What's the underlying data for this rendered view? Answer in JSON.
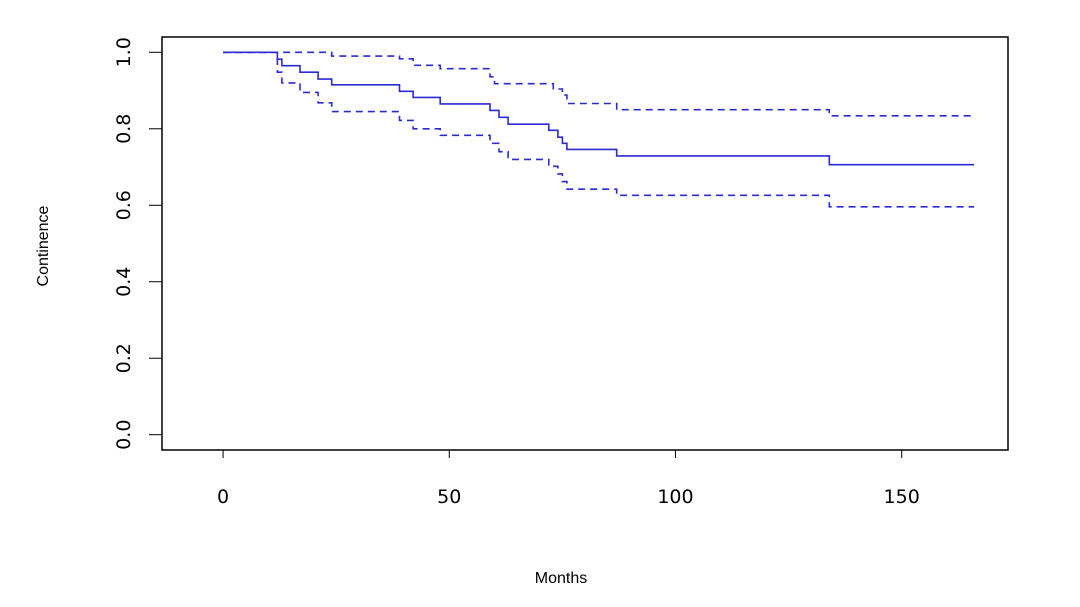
{
  "chart_data": {
    "type": "line",
    "title": "",
    "xlabel": "Months",
    "ylabel": "Continence",
    "xlim": [
      -13.5,
      173.5
    ],
    "ylim": [
      -0.04,
      1.04
    ],
    "x_ticks": [
      0,
      50,
      100,
      150
    ],
    "x_tick_labels": [
      "0",
      "50",
      "100",
      "150"
    ],
    "y_ticks": [
      0,
      0.2,
      0.4,
      0.6,
      0.8,
      1.0
    ],
    "y_tick_labels": [
      "0.0",
      "0.2",
      "0.4",
      "0.6",
      "0.8",
      "1.0"
    ],
    "grid": false,
    "legend": "none",
    "series": [
      {
        "style": "solid",
        "color": "#2b2bd1",
        "step": true,
        "x": [
          0,
          12,
          13,
          17,
          21,
          24,
          39,
          42,
          48,
          59,
          61,
          63,
          72,
          74,
          75,
          76,
          87,
          134,
          166
        ],
        "y": [
          1.0,
          0.982,
          0.965,
          0.948,
          0.93,
          0.915,
          0.898,
          0.882,
          0.865,
          0.848,
          0.83,
          0.812,
          0.796,
          0.778,
          0.762,
          0.746,
          0.729,
          0.706,
          0.706
        ]
      },
      {
        "style": "dashed",
        "color": "#2b2bd1",
        "step": true,
        "x": [
          0,
          12,
          24,
          39,
          42,
          48,
          59,
          60,
          73,
          75,
          76,
          87,
          134,
          166
        ],
        "y": [
          1.0,
          1.0,
          0.99,
          0.983,
          0.966,
          0.957,
          0.936,
          0.918,
          0.904,
          0.888,
          0.866,
          0.85,
          0.834,
          0.834
        ]
      },
      {
        "style": "dashed",
        "color": "#2b2bd1",
        "step": true,
        "x": [
          0,
          12,
          13,
          17,
          21,
          24,
          39,
          42,
          48,
          59,
          61,
          63,
          72,
          74,
          75,
          76,
          87,
          134,
          166
        ],
        "y": [
          1.0,
          0.948,
          0.92,
          0.895,
          0.868,
          0.845,
          0.822,
          0.8,
          0.783,
          0.762,
          0.74,
          0.72,
          0.702,
          0.682,
          0.662,
          0.642,
          0.626,
          0.596,
          0.596
        ]
      }
    ]
  }
}
